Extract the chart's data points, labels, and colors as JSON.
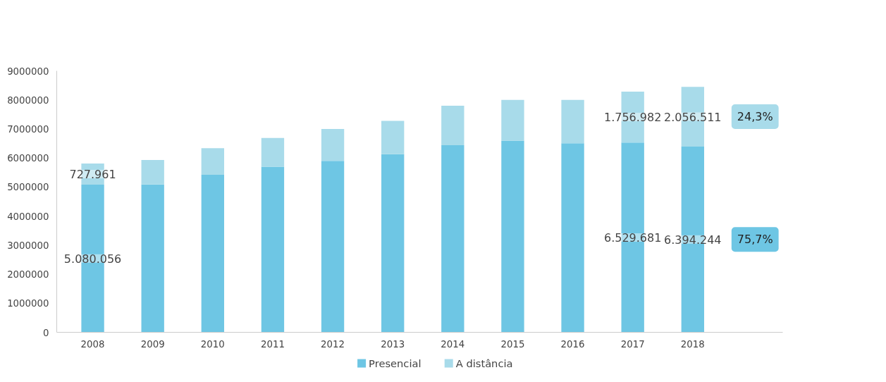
{
  "chart_data": {
    "type": "bar",
    "stacked": true,
    "categories": [
      "2008",
      "2009",
      "2010",
      "2011",
      "2012",
      "2013",
      "2014",
      "2015",
      "2016",
      "2017",
      "2018"
    ],
    "series": [
      {
        "name": "Presencial",
        "color": "#6ec6e4",
        "values": [
          5080056,
          5090000,
          5420000,
          5700000,
          5900000,
          6130000,
          6440000,
          6600000,
          6510000,
          6529681,
          6394244
        ],
        "value_labels": [
          "5.080.056",
          null,
          null,
          null,
          null,
          null,
          null,
          null,
          null,
          "6.529.681",
          "6.394.244"
        ]
      },
      {
        "name": "A distância",
        "color": "#a8dbea",
        "values": [
          727961,
          840000,
          920000,
          990000,
          1100000,
          1150000,
          1360000,
          1400000,
          1490000,
          1756982,
          2056511
        ],
        "value_labels": [
          "727.961",
          null,
          null,
          null,
          null,
          null,
          null,
          null,
          null,
          "1.756.982",
          "2.056.511"
        ]
      }
    ],
    "ylim": [
      0,
      9000000
    ],
    "yticks": [
      0,
      1000000,
      2000000,
      3000000,
      4000000,
      5000000,
      6000000,
      7000000,
      8000000,
      9000000
    ],
    "grid": false,
    "legend": "bottom",
    "annotations": [
      "24,3%",
      "75,7%"
    ]
  }
}
